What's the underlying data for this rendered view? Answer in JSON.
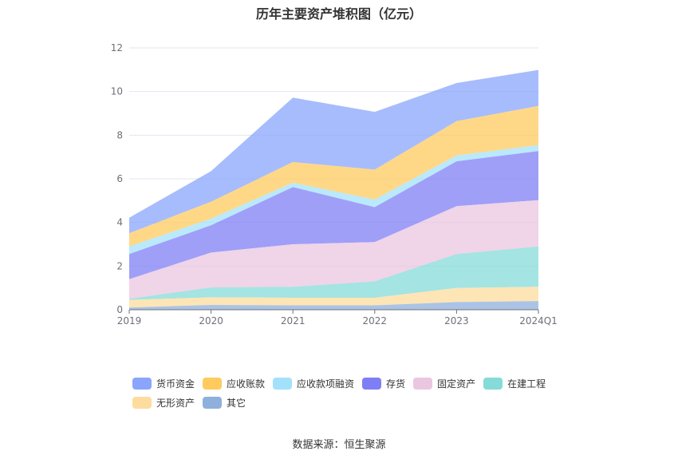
{
  "chart_data": {
    "type": "area",
    "stacked": true,
    "title": "历年主要资产堆积图（亿元）",
    "categories": [
      "2019",
      "2020",
      "2021",
      "2022",
      "2023",
      "2024Q1"
    ],
    "ylim": [
      0,
      12
    ],
    "yticks": [
      0,
      2,
      4,
      6,
      8,
      10,
      12
    ],
    "grid": true,
    "legend_position": "bottom",
    "series": [
      {
        "name": "货币资金",
        "color": "#8aa5fb",
        "values": [
          0.72,
          1.4,
          2.95,
          2.65,
          1.75,
          1.65
        ]
      },
      {
        "name": "应收账款",
        "color": "#ffcb5f",
        "values": [
          0.6,
          0.78,
          0.95,
          1.37,
          1.57,
          1.8
        ]
      },
      {
        "name": "应收款项融资",
        "color": "#a3e1fa",
        "values": [
          0.35,
          0.3,
          0.2,
          0.35,
          0.27,
          0.27
        ]
      },
      {
        "name": "存货",
        "color": "#7f7ff5",
        "values": [
          1.15,
          1.25,
          2.62,
          1.6,
          2.05,
          2.25
        ]
      },
      {
        "name": "固定资产",
        "color": "#ebc6e0",
        "values": [
          0.9,
          1.6,
          1.95,
          1.8,
          2.2,
          2.12
        ]
      },
      {
        "name": "在建工程",
        "color": "#85dbd8",
        "values": [
          0.05,
          0.45,
          0.5,
          0.75,
          1.55,
          1.85
        ]
      },
      {
        "name": "无形资产",
        "color": "#fddc9d",
        "values": [
          0.35,
          0.35,
          0.35,
          0.35,
          0.65,
          0.65
        ]
      },
      {
        "name": "其它",
        "color": "#8fb0dc",
        "values": [
          0.1,
          0.22,
          0.2,
          0.2,
          0.35,
          0.4
        ]
      }
    ]
  },
  "source_text": "数据来源：恒生聚源"
}
